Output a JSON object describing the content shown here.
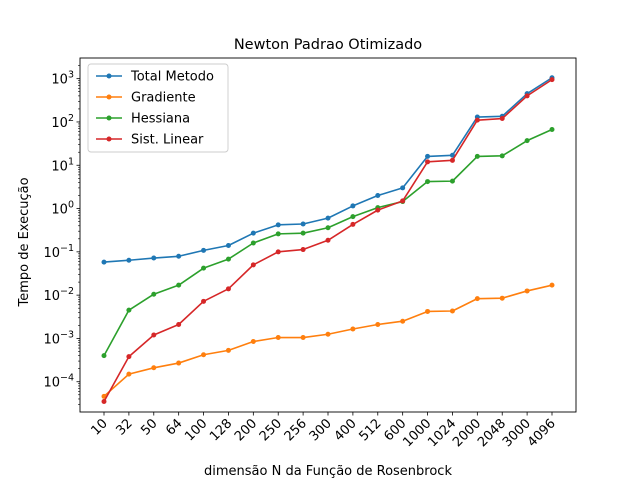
{
  "chart_data": {
    "type": "line",
    "title": "Newton Padrao Otimizado",
    "xlabel": "dimensão N da Função de Rosenbrock",
    "ylabel": "Tempo de Execução",
    "yscale": "log",
    "ylim": [
      2e-05,
      3000
    ],
    "y_ticks": [
      {
        "value": 0.0001,
        "base": "10",
        "exp": "−4"
      },
      {
        "value": 0.001,
        "base": "10",
        "exp": "−3"
      },
      {
        "value": 0.01,
        "base": "10",
        "exp": "−2"
      },
      {
        "value": 0.1,
        "base": "10",
        "exp": "−1"
      },
      {
        "value": 1,
        "base": "10",
        "exp": "0"
      },
      {
        "value": 10,
        "base": "10",
        "exp": "1"
      },
      {
        "value": 100,
        "base": "10",
        "exp": "2"
      },
      {
        "value": 1000,
        "base": "10",
        "exp": "3"
      }
    ],
    "categories": [
      "10",
      "32",
      "50",
      "64",
      "100",
      "128",
      "200",
      "250",
      "256",
      "300",
      "400",
      "512",
      "600",
      "1000",
      "1024",
      "2000",
      "2048",
      "3000",
      "4096"
    ],
    "grid": false,
    "legend_position": "top-left",
    "series": [
      {
        "name": "Total Metodo",
        "color": "#1f77b4",
        "values": [
          0.058,
          0.064,
          0.072,
          0.079,
          0.108,
          0.14,
          0.27,
          0.42,
          0.44,
          0.6,
          1.15,
          2.0,
          3.0,
          16.0,
          17.0,
          130.0,
          135.0,
          450.0,
          1050.0
        ]
      },
      {
        "name": "Gradiente",
        "color": "#ff7f0e",
        "values": [
          4.6e-05,
          0.00015,
          0.00021,
          0.00027,
          0.00042,
          0.00053,
          0.00085,
          0.00105,
          0.00105,
          0.00125,
          0.00165,
          0.0021,
          0.0025,
          0.0042,
          0.0043,
          0.0083,
          0.0085,
          0.0125,
          0.017
        ]
      },
      {
        "name": "Hessiana",
        "color": "#2ca02c",
        "values": [
          0.0004,
          0.0045,
          0.0105,
          0.017,
          0.042,
          0.068,
          0.16,
          0.26,
          0.27,
          0.36,
          0.65,
          1.05,
          1.45,
          4.2,
          4.3,
          16.0,
          16.5,
          37.0,
          67.0
        ]
      },
      {
        "name": "Sist. Linear",
        "color": "#d62728",
        "values": [
          3.5e-05,
          0.00038,
          0.0012,
          0.0021,
          0.0072,
          0.014,
          0.05,
          0.1,
          0.113,
          0.185,
          0.43,
          0.92,
          1.5,
          12.0,
          13.0,
          110.0,
          120.0,
          400.0,
          950.0
        ]
      }
    ]
  }
}
